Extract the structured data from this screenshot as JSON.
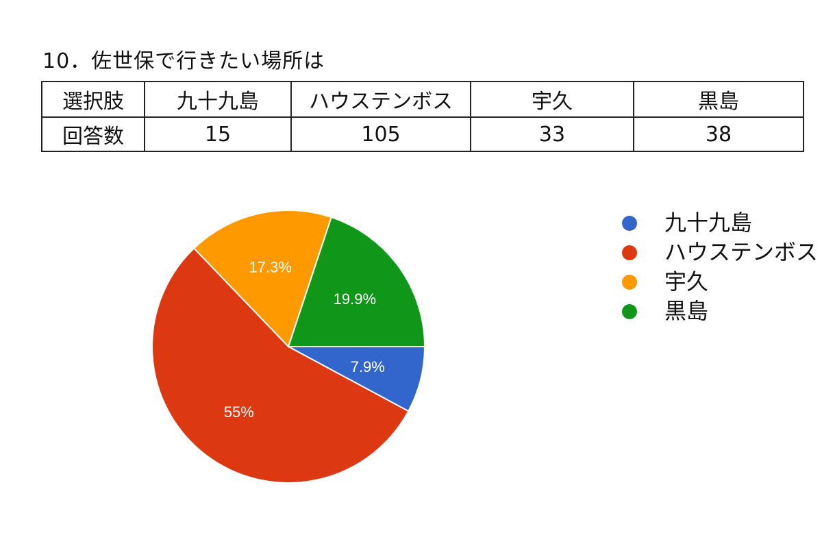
{
  "question_title": "10．佐世保で行きたい場所は",
  "table": {
    "header_label": "選択肢",
    "count_label": "回答数",
    "choices": [
      "九十九島",
      "ハウステンボス",
      "宇久",
      "黒島"
    ],
    "counts": [
      "15",
      "105",
      "33",
      "38"
    ]
  },
  "chart_data": {
    "type": "pie",
    "categories": [
      "九十九島",
      "ハウステンボス",
      "宇久",
      "黒島"
    ],
    "values": [
      15,
      105,
      33,
      38
    ],
    "slice_labels": [
      "7.9%",
      "55%",
      "17.3%",
      "19.9%"
    ],
    "colors": [
      "#3366cc",
      "#dc3912",
      "#ff9900",
      "#109618"
    ],
    "legend_position": "right",
    "start_direction": "east, clockwise"
  }
}
